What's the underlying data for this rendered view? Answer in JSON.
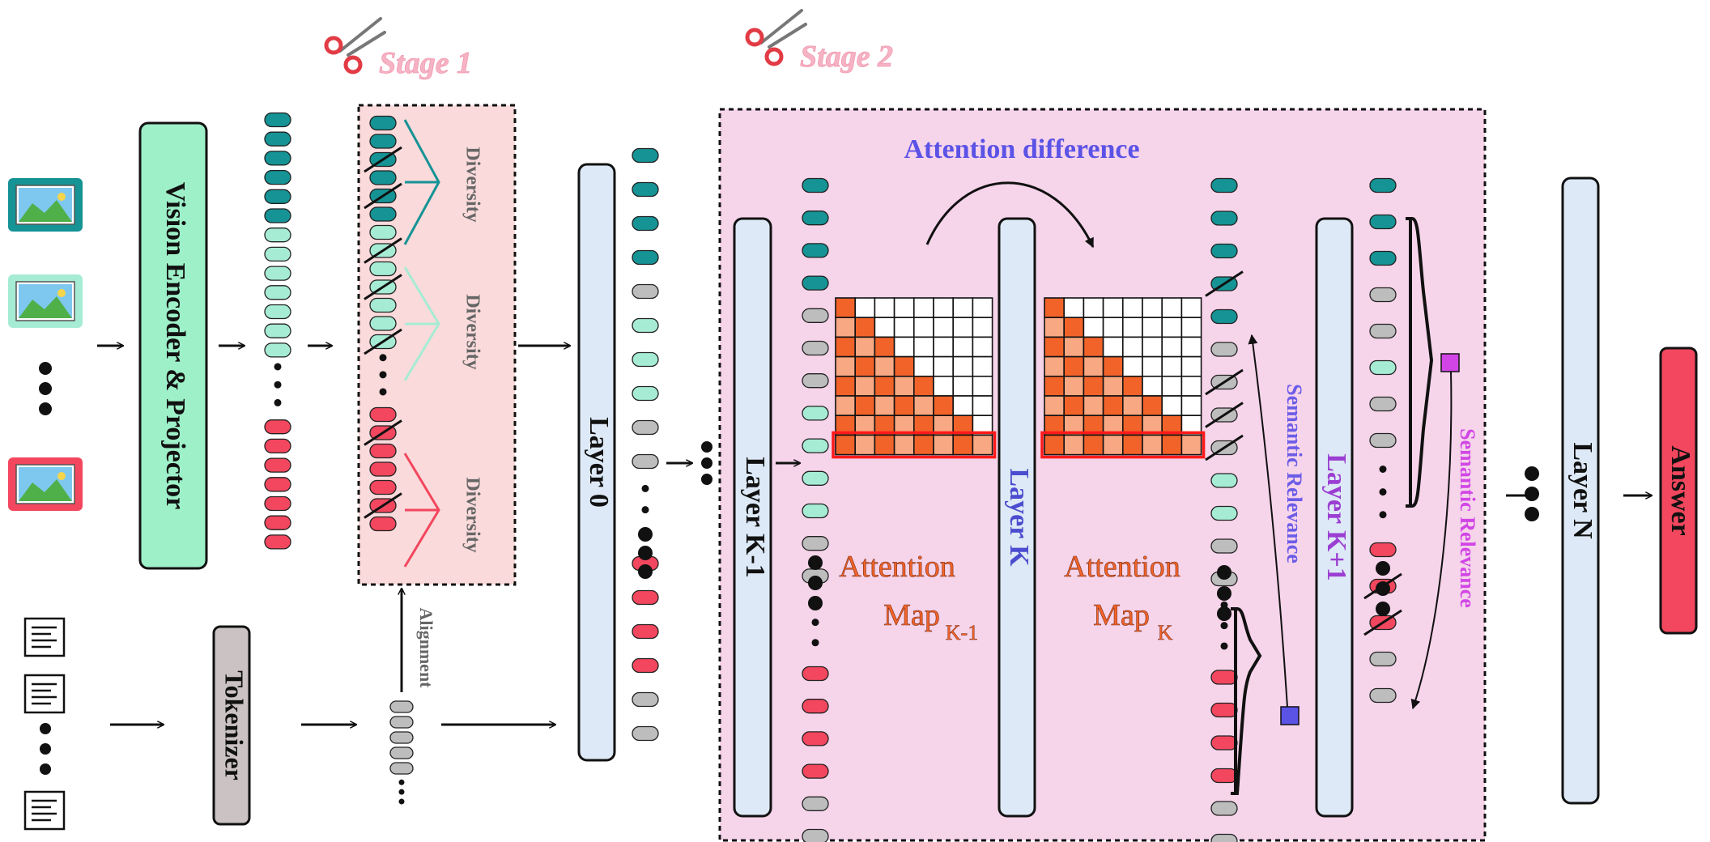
{
  "colors": {
    "teal": "#159395",
    "mint": "#a6ecd4",
    "red": "#f2475e",
    "gray": "#bdbdbd",
    "encoder_fill": "#9ef0c8",
    "tokenizer_fill": "#cbc3c3",
    "layer_fill": "#dde9f6",
    "answer_fill": "#f2475e",
    "stage1_box": "#fadadb",
    "stage2_box": "#f6d4ea",
    "attention_orange": "#f2632a",
    "attention_light": "#f8a882",
    "attention_title": "#5b52e6",
    "semantic_left": "#6c5ce7",
    "semantic_right": "#d145e6",
    "layer_k_text": "#4b4ccf",
    "layer_k1_text": "#9b3ed2",
    "stage_text": "#f6b3c3"
  },
  "icons": {
    "image_inputs": [
      "image-icon",
      "image-icon",
      "image-icon"
    ],
    "text_inputs": [
      "document-icon",
      "document-icon",
      "document-icon"
    ],
    "stage": "scissors-icon"
  },
  "labels": {
    "stage1": "Stage 1",
    "stage2": "Stage 2",
    "vision_encoder": "Vision Encoder & Projector",
    "tokenizer": "Tokenizer",
    "layer0": "Layer 0",
    "layer_k_minus_1": "Layer K-1",
    "layer_k": "Layer K",
    "layer_k_plus_1": "Layer K+1",
    "layer_n": "Layer N",
    "answer": "Answer",
    "diversity": "Diversity",
    "alignment": "Alignment",
    "attention_difference": "Attention difference",
    "attention": "Attention",
    "map": "Map",
    "sub_k_minus_1": "K-1",
    "sub_k": "K",
    "semantic_relevance": "Semantic Relevance"
  }
}
